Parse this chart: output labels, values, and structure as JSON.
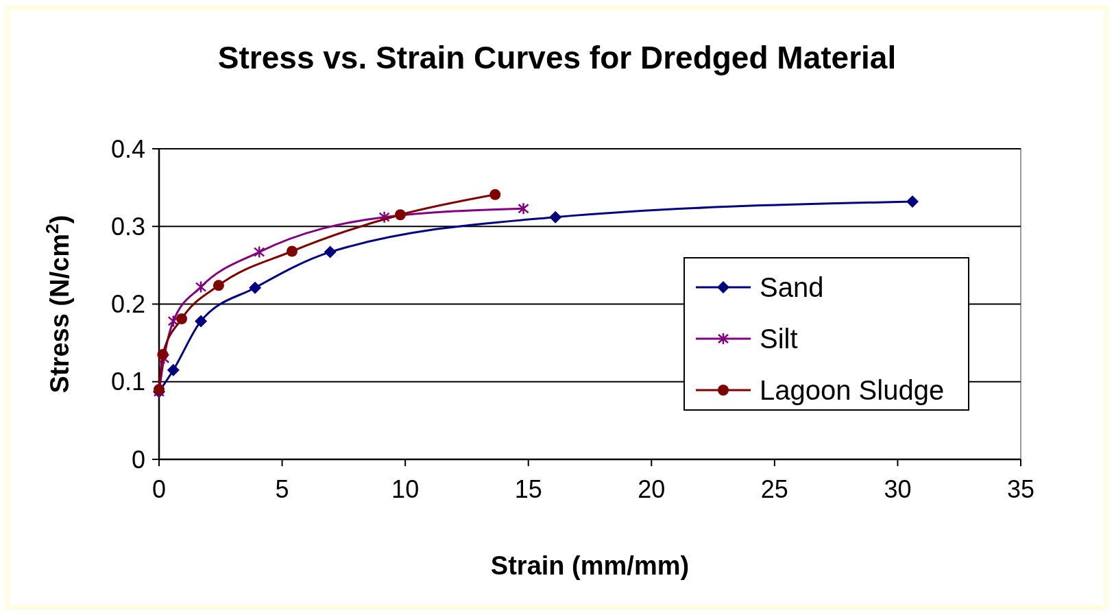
{
  "chart_data": {
    "type": "line",
    "title": "Stress vs. Strain Curves for Dredged Material",
    "xlabel": "Strain (mm/mm)",
    "ylabel": "Stress (N/cm$^{2}$)",
    "xlim": [
      0,
      35
    ],
    "xticks": [
      0,
      5,
      10,
      15,
      20,
      25,
      30,
      35
    ],
    "ylim": [
      0,
      0.4
    ],
    "yticks": [
      0,
      0.1,
      0.2,
      0.3,
      0.4
    ],
    "grid": "y",
    "legend": "right",
    "series": [
      {
        "name": "Sand",
        "color": "#000080",
        "marker": "diamond",
        "x": [
          0,
          0.58,
          1.7,
          3.9,
          6.95,
          16.1,
          30.6
        ],
        "values": [
          0.087,
          0.115,
          0.178,
          0.221,
          0.267,
          0.312,
          0.332
        ]
      },
      {
        "name": "Silt",
        "color": "#800080",
        "marker": "cross",
        "x": [
          0,
          0.2,
          0.58,
          1.7,
          4.07,
          9.15,
          14.8
        ],
        "values": [
          0.087,
          0.13,
          0.178,
          0.222,
          0.267,
          0.312,
          0.323
        ]
      },
      {
        "name": "Lagoon Sludge",
        "color": "#800000",
        "marker": "circle",
        "x": [
          0,
          0.15,
          0.92,
          2.42,
          5.4,
          9.8,
          13.65
        ],
        "values": [
          0.09,
          0.135,
          0.181,
          0.224,
          0.268,
          0.315,
          0.341
        ]
      }
    ]
  }
}
